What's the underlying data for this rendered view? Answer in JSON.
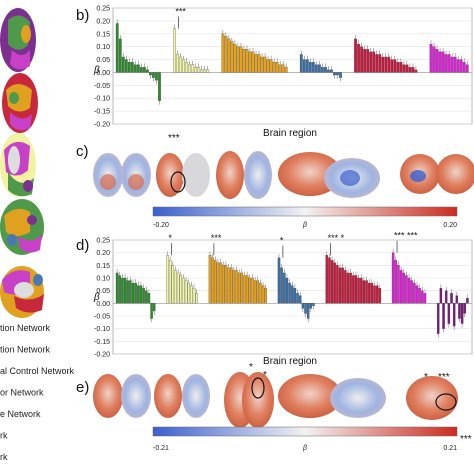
{
  "legend": {
    "items": [
      {
        "label": "tion Network",
        "color": "#7b2f8f"
      },
      {
        "label": "tion Network",
        "color": "#4f9a4a"
      },
      {
        "label": "al Control Network",
        "color": "#e0a020"
      },
      {
        "label": "or Network",
        "color": "#4a78b0"
      },
      {
        "label": "e Network",
        "color": "#c8283c"
      },
      {
        "label": "rk",
        "color": "#c840c8"
      },
      {
        "label": "rk",
        "color": "#999999"
      }
    ]
  },
  "brain_colors": {
    "purple": "#7b2f8f",
    "green": "#4f9a4a",
    "orange": "#e0a020",
    "blue": "#4a78b0",
    "red": "#c8283c",
    "magenta": "#c840c8",
    "yellow": "#f2f2a0"
  },
  "panels": {
    "b": {
      "label": "b)",
      "ylabel": "β",
      "xlabel": "Brain region"
    },
    "c": {
      "label": "c)"
    },
    "d": {
      "label": "d)",
      "ylabel": "β",
      "xlabel": "Brain region"
    },
    "e": {
      "label": "e)"
    }
  },
  "colorbar_c": {
    "min": "-0.20",
    "mid": "β",
    "max": "0.20"
  },
  "colorbar_e": {
    "min": "-0.21",
    "mid": "β",
    "max": "0.21"
  },
  "chart_data": [
    {
      "id": "b",
      "type": "bar",
      "ylabel": "β",
      "xlabel": "Brain region",
      "ylim": [
        -0.2,
        0.25
      ],
      "yticks": [
        "0.25",
        "0.20",
        "0.15",
        "0.10",
        "0.05",
        "0.00",
        "-0.05",
        "-0.10",
        "-0.15",
        "-0.20"
      ],
      "grid": true,
      "series": [
        {
          "color": "#2e8b2e",
          "values": [
            0.19,
            0.13,
            0.06,
            0.05,
            0.04,
            0.04,
            0.03,
            0.03,
            0.02,
            0.02,
            0.01,
            -0.01,
            -0.02,
            -0.03,
            -0.11
          ],
          "annotation": ""
        },
        {
          "color": "#f0f5a8",
          "values": [
            0.17,
            0.07,
            0.06,
            0.05,
            0.04,
            0.03,
            0.03,
            0.02,
            0.02,
            0.01,
            0.01,
            0.01
          ],
          "annotation": "***"
        },
        {
          "color": "#e8a21a",
          "values": [
            0.15,
            0.14,
            0.13,
            0.12,
            0.11,
            0.1,
            0.1,
            0.09,
            0.09,
            0.08,
            0.08,
            0.07,
            0.07,
            0.06,
            0.06,
            0.05,
            0.05,
            0.04,
            0.04,
            0.03,
            0.03,
            0.02
          ],
          "annotation": ""
        },
        {
          "color": "#3a6fa8",
          "values": [
            0.07,
            0.05,
            0.05,
            0.04,
            0.04,
            0.03,
            0.03,
            0.02,
            0.02,
            0.01,
            0.01,
            -0.01,
            -0.01,
            -0.02
          ],
          "annotation": ""
        },
        {
          "color": "#c8193c",
          "values": [
            0.13,
            0.11,
            0.1,
            0.09,
            0.09,
            0.08,
            0.08,
            0.07,
            0.07,
            0.06,
            0.06,
            0.06,
            0.05,
            0.05,
            0.04,
            0.04,
            0.03,
            0.03,
            0.02,
            0.02,
            0.01
          ],
          "annotation": ""
        },
        {
          "color": "#e020d8",
          "values": [
            0.11,
            0.1,
            0.09,
            0.08,
            0.08,
            0.07,
            0.07,
            0.06,
            0.06,
            0.05,
            0.05,
            0.04,
            0.03
          ],
          "annotation": ""
        }
      ]
    },
    {
      "id": "d",
      "type": "bar",
      "ylabel": "β",
      "xlabel": "Brain region",
      "ylim": [
        -0.2,
        0.25
      ],
      "yticks": [
        "0.25",
        "0.20",
        "0.15",
        "0.10",
        "0.05",
        "0.00",
        "-0.05",
        "-0.10",
        "-0.15",
        "-0.20"
      ],
      "grid": true,
      "series": [
        {
          "color": "#2e8b2e",
          "values": [
            0.12,
            0.11,
            0.1,
            0.1,
            0.09,
            0.09,
            0.08,
            0.08,
            0.07,
            0.07,
            0.06,
            0.05,
            0.04,
            -0.06,
            -0.03
          ],
          "annotation": ""
        },
        {
          "color": "#f0f5a8",
          "values": [
            0.19,
            0.17,
            0.15,
            0.13,
            0.12,
            0.11,
            0.1,
            0.09,
            0.08,
            0.07,
            0.06,
            0.04
          ],
          "annotation": "*"
        },
        {
          "color": "#e8a21a",
          "values": [
            0.19,
            0.18,
            0.17,
            0.16,
            0.16,
            0.15,
            0.15,
            0.14,
            0.14,
            0.13,
            0.13,
            0.12,
            0.12,
            0.11,
            0.11,
            0.1,
            0.1,
            0.09,
            0.09,
            0.08,
            0.07,
            0.06
          ],
          "annotation": "***"
        },
        {
          "color": "#3a6fa8",
          "values": [
            0.18,
            0.14,
            0.12,
            0.1,
            0.08,
            0.07,
            0.06,
            0.04,
            0.03,
            -0.02,
            -0.04,
            -0.06,
            -0.02,
            -0.01
          ],
          "annotation": "*"
        },
        {
          "color": "#c8193c",
          "values": [
            0.19,
            0.18,
            0.17,
            0.16,
            0.15,
            0.14,
            0.14,
            0.13,
            0.12,
            0.12,
            0.11,
            0.11,
            0.1,
            0.1,
            0.09,
            0.09,
            0.08,
            0.08,
            0.07,
            0.07,
            0.06
          ],
          "annotation": "*** *"
        },
        {
          "color": "#e020d8",
          "values": [
            0.2,
            0.17,
            0.15,
            0.13,
            0.12,
            0.11,
            0.1,
            0.09,
            0.08,
            0.07,
            0.06,
            0.05,
            0.04
          ],
          "annotation": "*** ***"
        },
        {
          "color": "#7a1a7a",
          "values": [
            -0.12,
            0.06,
            -0.1,
            0.05,
            -0.08,
            0.04,
            -0.09,
            0.03,
            -0.06,
            -0.08,
            -0.04,
            0.02
          ],
          "annotation": ""
        }
      ]
    }
  ]
}
